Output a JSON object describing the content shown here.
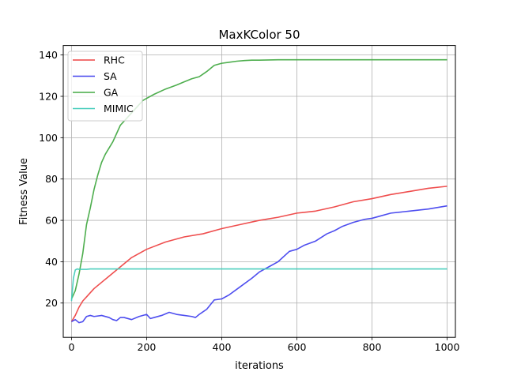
{
  "chart_data": {
    "type": "line",
    "title": "MaxKColor 50",
    "xlabel": "iterations",
    "ylabel": "Fitness Value",
    "xlim": [
      -22,
      1022
    ],
    "ylim": [
      3.4,
      144.6
    ],
    "xticks": [
      0,
      200,
      400,
      600,
      800,
      1000
    ],
    "yticks": [
      20,
      40,
      60,
      80,
      100,
      120,
      140
    ],
    "grid": true,
    "legend_position": "top-left",
    "series": [
      {
        "name": "RHC",
        "color": "#ee4444",
        "x": [
          0,
          10,
          20,
          30,
          40,
          60,
          80,
          100,
          120,
          140,
          160,
          180,
          200,
          250,
          300,
          350,
          400,
          450,
          500,
          550,
          600,
          650,
          700,
          750,
          800,
          850,
          900,
          950,
          1000
        ],
        "y": [
          11,
          14,
          18,
          21,
          23,
          27,
          30,
          33,
          36,
          39,
          42,
          44,
          46,
          49.5,
          52,
          53.5,
          56,
          58,
          60,
          61.5,
          63.5,
          64.5,
          66.5,
          69,
          70.5,
          72.5,
          74,
          75.5,
          76.5
        ]
      },
      {
        "name": "SA",
        "color": "#4444ee",
        "x": [
          0,
          10,
          20,
          30,
          40,
          50,
          60,
          80,
          100,
          110,
          120,
          130,
          140,
          160,
          180,
          200,
          210,
          220,
          240,
          260,
          280,
          300,
          320,
          330,
          340,
          360,
          380,
          400,
          420,
          450,
          480,
          500,
          520,
          550,
          580,
          600,
          620,
          650,
          680,
          700,
          720,
          750,
          780,
          800,
          820,
          850,
          900,
          950,
          1000
        ],
        "y": [
          11,
          12,
          10.5,
          11,
          13.5,
          14,
          13.5,
          14,
          13,
          12,
          11.5,
          13,
          13,
          12,
          13.5,
          14.5,
          12.5,
          13,
          14,
          15.5,
          14.5,
          14,
          13.5,
          13,
          14.5,
          17,
          21.5,
          22,
          24,
          28,
          32,
          35,
          37,
          40,
          45,
          46,
          48,
          50,
          53.5,
          55,
          57,
          59,
          60.5,
          61,
          62,
          63.5,
          64.5,
          65.5,
          67
        ]
      },
      {
        "name": "GA",
        "color": "#44aa44",
        "x": [
          0,
          10,
          20,
          30,
          40,
          50,
          60,
          70,
          80,
          90,
          100,
          110,
          120,
          130,
          140,
          150,
          160,
          170,
          180,
          190,
          200,
          220,
          250,
          280,
          300,
          320,
          340,
          360,
          380,
          400,
          420,
          440,
          460,
          480,
          500,
          550,
          600,
          700,
          800,
          900,
          1000
        ],
        "y": [
          22,
          26,
          34,
          44,
          58,
          66,
          75,
          82,
          88,
          92,
          95,
          98,
          102,
          106,
          108,
          110,
          112,
          114,
          116,
          118,
          119,
          121,
          123.5,
          125.5,
          127,
          128.5,
          129.5,
          132,
          135,
          136,
          136.5,
          137,
          137.3,
          137.5,
          137.5,
          137.7,
          137.7,
          137.7,
          137.7,
          137.7,
          137.7
        ]
      },
      {
        "name": "MIMIC",
        "color": "#44ccbb",
        "x": [
          0,
          5,
          10,
          15,
          20,
          30,
          40,
          50,
          60,
          80,
          100,
          200,
          400,
          600,
          800,
          1000
        ],
        "y": [
          21,
          32,
          36,
          36.5,
          36.3,
          36.3,
          36.3,
          36.5,
          36.5,
          36.5,
          36.5,
          36.5,
          36.5,
          36.5,
          36.5,
          36.5
        ]
      }
    ]
  }
}
